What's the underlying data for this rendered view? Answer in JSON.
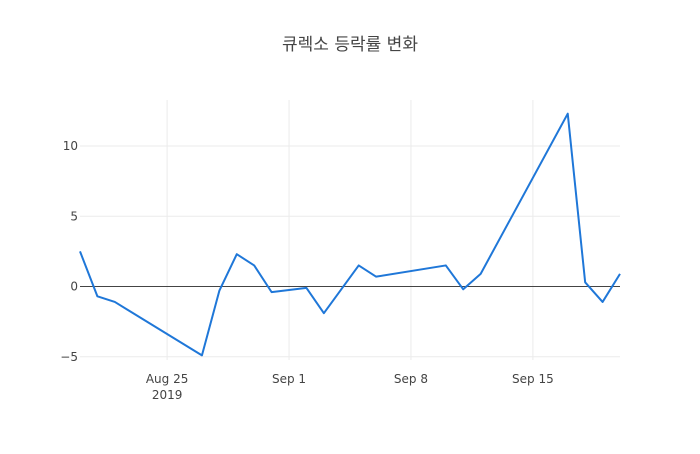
{
  "chart_data": {
    "type": "line",
    "title": "큐렉소 등락률 변화",
    "xlabel": "",
    "ylabel": "",
    "x_range": [
      "2019-08-20",
      "2019-09-20"
    ],
    "ylim": [
      -5,
      13
    ],
    "grid": true,
    "legend": "none",
    "line_color": "#1f77d8",
    "x_ticks": [
      {
        "value": "2019-08-25",
        "label": "Aug 25",
        "sublabel": "2019"
      },
      {
        "value": "2019-09-01",
        "label": "Sep 1",
        "sublabel": ""
      },
      {
        "value": "2019-09-08",
        "label": "Sep 8",
        "sublabel": ""
      },
      {
        "value": "2019-09-15",
        "label": "Sep 15",
        "sublabel": ""
      }
    ],
    "y_ticks": [
      {
        "value": -5,
        "label": "−5"
      },
      {
        "value": 0,
        "label": "0"
      },
      {
        "value": 5,
        "label": "5"
      },
      {
        "value": 10,
        "label": "10"
      }
    ],
    "series": [
      {
        "x": [
          "2019-08-20",
          "2019-08-21",
          "2019-08-22",
          "2019-08-27",
          "2019-08-28",
          "2019-08-29",
          "2019-08-30",
          "2019-08-31",
          "2019-09-02",
          "2019-09-03",
          "2019-09-05",
          "2019-09-06",
          "2019-09-10",
          "2019-09-11",
          "2019-09-12",
          "2019-09-17",
          "2019-09-18",
          "2019-09-19",
          "2019-09-20"
        ],
        "y": [
          2.5,
          -0.7,
          -1.1,
          -4.9,
          -0.3,
          2.3,
          1.5,
          -0.4,
          -0.1,
          -1.9,
          1.5,
          0.7,
          1.5,
          -0.2,
          0.9,
          12.3,
          0.3,
          -1.1,
          0.9
        ]
      }
    ]
  }
}
